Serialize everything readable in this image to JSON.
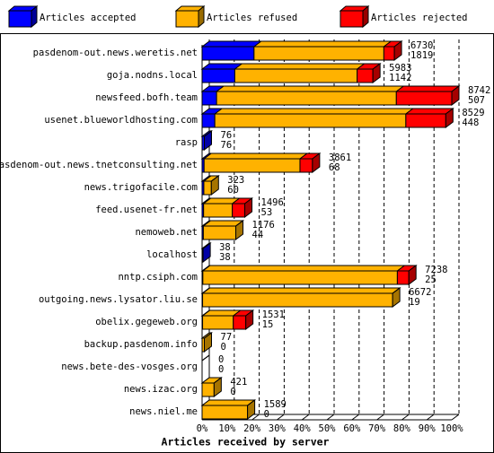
{
  "chart_data": {
    "type": "bar3d",
    "xlabel": "Articles received by server",
    "categories": [
      "pasdenom-out.news.weretis.net",
      "goja.nodns.local",
      "newsfeed.bofh.team",
      "usenet.blueworldhosting.com",
      "rasp",
      "pasdenom-out.news.tnetconsulting.net",
      "news.trigofacile.com",
      "feed.usenet-fr.net",
      "nemoweb.net",
      "localhost",
      "nntp.csiph.com",
      "outgoing.news.lysator.liu.se",
      "obelix.gegeweb.org",
      "backup.pasdenom.info",
      "news.bete-des-vosges.org",
      "news.izac.org",
      "news.niel.me"
    ],
    "totals": [
      6730,
      5983,
      8742,
      8529,
      76,
      3861,
      323,
      1496,
      1176,
      38,
      7238,
      6672,
      1531,
      77,
      0,
      421,
      1589
    ],
    "accepted_counts": [
      1819,
      1142,
      507,
      448,
      76,
      68,
      60,
      53,
      44,
      38,
      25,
      19,
      15,
      0,
      0,
      0,
      0
    ],
    "series": [
      {
        "name": "Articles accepted",
        "color": "#0000ff",
        "values": [
          20.8,
          13.1,
          5.8,
          5.1,
          0.9,
          0.8,
          0.7,
          0.6,
          0.5,
          0.4,
          0.3,
          0.2,
          0.2,
          0,
          0,
          0,
          0
        ]
      },
      {
        "name": "Articles refused",
        "color": "#ffb200",
        "values": [
          52.0,
          49.0,
          72.0,
          76.5,
          0,
          38.4,
          3.0,
          11.5,
          13.0,
          0,
          77.9,
          76.1,
          12.3,
          0.9,
          0,
          4.8,
          18.2
        ]
      },
      {
        "name": "Articles rejected",
        "color": "#ff0000",
        "values": [
          4.2,
          6.3,
          22.2,
          16.0,
          0,
          5.0,
          0,
          5.0,
          0,
          0,
          4.6,
          0,
          5.0,
          0,
          0,
          0,
          0
        ]
      }
    ],
    "xlim": [
      0,
      100
    ],
    "xticks": [
      {
        "value": 0,
        "label": "0%"
      },
      {
        "value": 10,
        "label": "10%"
      },
      {
        "value": 20,
        "label": "20%"
      },
      {
        "value": 30,
        "label": "30%"
      },
      {
        "value": 40,
        "label": "40%"
      },
      {
        "value": 50,
        "label": "50%"
      },
      {
        "value": 60,
        "label": "60%"
      },
      {
        "value": 70,
        "label": "70%"
      },
      {
        "value": 80,
        "label": "80%"
      },
      {
        "value": 90,
        "label": "90%"
      },
      {
        "value": 100,
        "label": "100%"
      }
    ],
    "grid": true
  }
}
